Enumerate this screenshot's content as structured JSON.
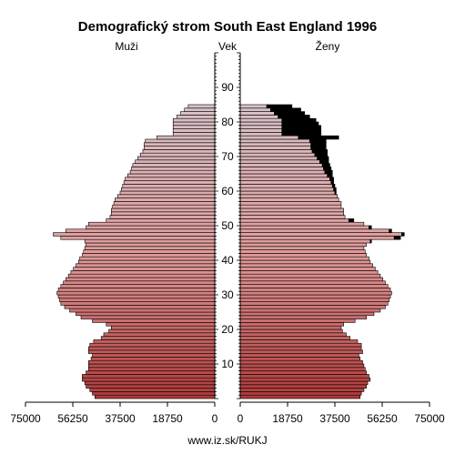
{
  "chart_data": {
    "type": "bar",
    "title": "Demografický strom South East England 1996",
    "left_label": "Muži",
    "center_label": "Vek",
    "right_label": "Ženy",
    "footer": "www.iz.sk/RUKJ",
    "x_ticks_left": [
      "75000",
      "56250",
      "37500",
      "18750",
      "0"
    ],
    "x_ticks_right": [
      "0",
      "18750",
      "37500",
      "56250",
      "75000"
    ],
    "xlim": [
      0,
      75000
    ],
    "ylim": [
      0,
      100
    ],
    "y_ticks": [
      10,
      20,
      30,
      40,
      50,
      60,
      70,
      80,
      90
    ],
    "ages": [
      0,
      1,
      2,
      3,
      4,
      5,
      6,
      7,
      8,
      9,
      10,
      11,
      12,
      13,
      14,
      15,
      16,
      17,
      18,
      19,
      20,
      21,
      22,
      23,
      24,
      25,
      26,
      27,
      28,
      29,
      30,
      31,
      32,
      33,
      34,
      35,
      36,
      37,
      38,
      39,
      40,
      41,
      42,
      43,
      44,
      45,
      46,
      47,
      48,
      49,
      50,
      51,
      52,
      53,
      54,
      55,
      56,
      57,
      58,
      59,
      60,
      61,
      62,
      63,
      64,
      65,
      66,
      67,
      68,
      69,
      70,
      71,
      72,
      73,
      74,
      75,
      76,
      77,
      78,
      79,
      80,
      81,
      82,
      83,
      84,
      85,
      86,
      87,
      88,
      89
    ],
    "series": [
      {
        "name": "Muži",
        "values": [
          47500,
          48500,
          49500,
          51000,
          51500,
          52500,
          52500,
          51000,
          50000,
          50000,
          50000,
          49000,
          48500,
          50000,
          50000,
          49500,
          48000,
          45000,
          44000,
          42000,
          41000,
          43000,
          48500,
          53000,
          55000,
          57500,
          59500,
          61000,
          61500,
          62000,
          62500,
          62000,
          61000,
          60000,
          59000,
          58000,
          57000,
          56000,
          55000,
          54000,
          53500,
          52500,
          52000,
          51500,
          51000,
          51500,
          61000,
          64000,
          59000,
          51000,
          50000,
          43000,
          41500,
          41000,
          41000,
          40500,
          40000,
          39500,
          38500,
          37500,
          37000,
          36500,
          36000,
          35500,
          34500,
          33500,
          33000,
          32500,
          31500,
          30500,
          29500,
          28500,
          28000,
          28000,
          27500,
          23000,
          16500,
          16500,
          16500,
          16500,
          16500,
          15000,
          13500,
          12000,
          10500,
          0,
          0,
          0,
          0,
          0
        ]
      },
      {
        "name": "Ženy",
        "values": [
          47500,
          48000,
          49000,
          50000,
          50500,
          51500,
          51000,
          50000,
          49500,
          49000,
          48500,
          47500,
          47000,
          48500,
          48000,
          48000,
          46500,
          43500,
          42000,
          40500,
          40000,
          41000,
          45500,
          50000,
          53000,
          55500,
          57500,
          58500,
          59000,
          59500,
          60000,
          59500,
          58500,
          57500,
          56500,
          55500,
          54500,
          53500,
          52500,
          51500,
          51000,
          50000,
          49500,
          49000,
          50000,
          52000,
          63500,
          65000,
          60000,
          52000,
          49000,
          45000,
          41500,
          41000,
          41000,
          40000,
          40000,
          39000,
          38500,
          38000,
          38000,
          37500,
          37000,
          37000,
          36500,
          36500,
          36000,
          35500,
          35000,
          35000,
          34500,
          34500,
          34000,
          34000,
          34000,
          39000,
          32000,
          32000,
          32000,
          31000,
          30000,
          27500,
          25500,
          24000,
          20500,
          0,
          0,
          0,
          0,
          0
        ]
      }
    ]
  },
  "colors": {
    "bar_dark": "#b03a3a",
    "bar_mid": "#e09898",
    "bar_light": "#d7c4c8",
    "female_excess": "#000000",
    "outline": "#000000"
  }
}
